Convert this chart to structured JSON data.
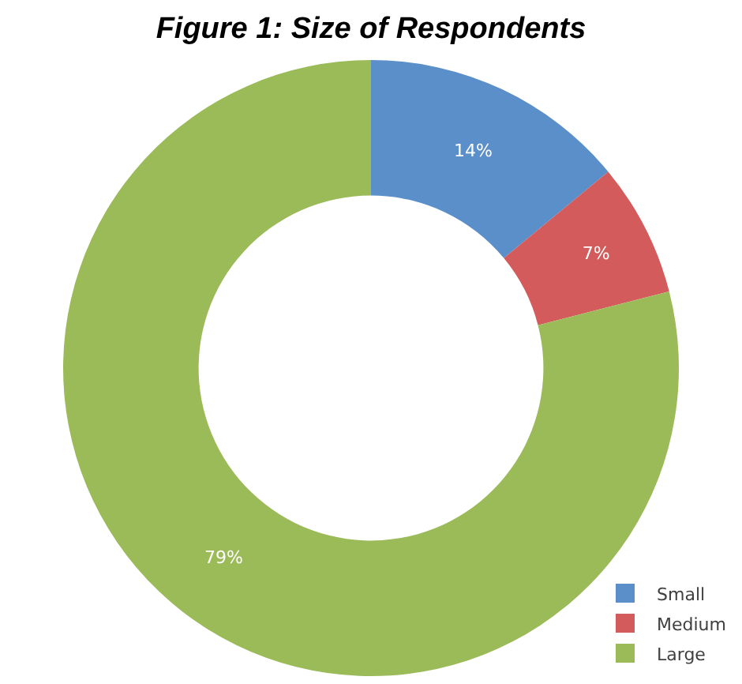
{
  "chart_data": {
    "type": "donut",
    "title": "Figure 1: Size of Respondents",
    "categories": [
      "Small",
      "Medium",
      "Large"
    ],
    "values": [
      14,
      7,
      79
    ],
    "value_labels": [
      "14%",
      "7%",
      "79%"
    ],
    "colors": [
      "#5b8fc9",
      "#d35b5b",
      "#9bbb59"
    ],
    "legend": "bottom right"
  }
}
